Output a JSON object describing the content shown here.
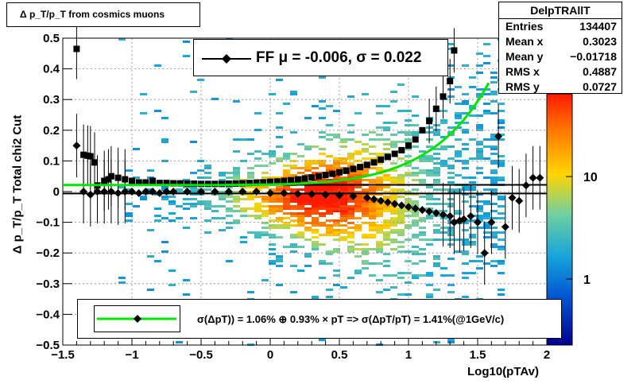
{
  "chart_data": {
    "type": "heatmap",
    "title": "Δ p_T/p_T from cosmics muons",
    "xlabel": "Log10(pTAv)",
    "ylabel": "Δ p_T/p_T  Total chi2 Cut",
    "xlim": [
      -1.5,
      2.0
    ],
    "ylim": [
      -0.5,
      0.5
    ],
    "grid": true,
    "x_ticks": [
      "−1.5",
      "−1",
      "−0.5",
      "0",
      "0.5",
      "1",
      "1.5",
      "2"
    ],
    "y_ticks": [
      "−0.5",
      "−0.4",
      "−0.3",
      "−0.2",
      "−0.1",
      "0",
      "0.1",
      "0.2",
      "0.3",
      "0.4",
      "0.5"
    ],
    "z_scale": "log",
    "z_ticks": [
      "1",
      "10"
    ],
    "colors": {
      "high": "#ff1a00",
      "mid": "#ffd500",
      "low": "#16a3dc",
      "min": "#000090",
      "fit_curve": "#00e600"
    },
    "rms_points": {
      "x": [
        -1.4,
        -1.35,
        -1.32,
        -1.3,
        -1.27,
        -1.25,
        -1.2,
        -1.17,
        -1.15,
        -1.1,
        -1.05,
        -1.0,
        -0.95,
        -0.9,
        -0.85,
        -0.8,
        -0.75,
        -0.7,
        -0.65,
        -0.6,
        -0.55,
        -0.5,
        -0.45,
        -0.4,
        -0.35,
        -0.3,
        -0.25,
        -0.2,
        -0.15,
        -0.1,
        -0.05,
        0.0,
        0.05,
        0.1,
        0.15,
        0.2,
        0.25,
        0.3,
        0.35,
        0.4,
        0.45,
        0.5,
        0.55,
        0.6,
        0.65,
        0.7,
        0.75,
        0.8,
        0.85,
        0.9,
        0.95,
        1.0,
        1.05,
        1.1,
        1.15,
        1.2,
        1.25,
        1.3,
        1.33
      ],
      "y": [
        0.465,
        0.12,
        0.117,
        0.115,
        0.095,
        0.02,
        0.035,
        0.04,
        0.05,
        0.045,
        0.04,
        0.035,
        0.03,
        0.03,
        0.035,
        0.028,
        0.028,
        0.027,
        0.027,
        0.026,
        0.026,
        0.025,
        0.025,
        0.025,
        0.025,
        0.026,
        0.026,
        0.027,
        0.028,
        0.029,
        0.03,
        0.032,
        0.033,
        0.035,
        0.037,
        0.04,
        0.043,
        0.046,
        0.05,
        0.054,
        0.058,
        0.063,
        0.068,
        0.074,
        0.08,
        0.087,
        0.095,
        0.104,
        0.113,
        0.123,
        0.135,
        0.15,
        0.17,
        0.2,
        0.23,
        0.27,
        0.31,
        0.36,
        0.46
      ]
    },
    "mean_points": {
      "x": [
        -1.4,
        -1.35,
        -1.3,
        -1.25,
        -1.2,
        -1.15,
        -1.1,
        -1.05,
        -1.0,
        -0.95,
        -0.9,
        -0.85,
        -0.8,
        -0.75,
        -0.7,
        -0.6,
        -0.5,
        -0.4,
        -0.3,
        -0.2,
        -0.1,
        0.0,
        0.1,
        0.2,
        0.3,
        0.4,
        0.5,
        0.6,
        0.7,
        0.75,
        0.8,
        0.85,
        0.9,
        0.95,
        1.0,
        1.05,
        1.1,
        1.15,
        1.2,
        1.25,
        1.3,
        1.33,
        1.37,
        1.4,
        1.45,
        1.5,
        1.55,
        1.6,
        1.65,
        1.7,
        1.75,
        1.8,
        1.85,
        1.9,
        1.95
      ],
      "y": [
        0.15,
        0.0,
        -0.01,
        0.0,
        0.0,
        0.0,
        -0.005,
        0.0,
        0.0,
        -0.005,
        0.0,
        0.0,
        -0.005,
        0.0,
        0.0,
        0.0,
        0.0,
        0.0,
        0.0,
        0.0,
        0.0,
        -0.005,
        -0.005,
        -0.007,
        -0.008,
        -0.01,
        -0.012,
        -0.015,
        -0.02,
        -0.025,
        -0.03,
        -0.035,
        -0.04,
        -0.045,
        -0.05,
        -0.055,
        -0.06,
        -0.065,
        -0.07,
        -0.075,
        -0.08,
        -0.1,
        -0.095,
        -0.09,
        -0.08,
        -0.1,
        -0.2,
        -0.1,
        0.18,
        -0.115,
        -0.02,
        -0.03,
        0.02,
        0.045,
        0.045
      ]
    },
    "fit_curve": {
      "name": "σ(ΔpT)) =  1.06% ⊕  0.93% × pT => σ(ΔpT/pT) =  1.41%(@1GeV/c)"
    },
    "fit_label": "FF μ = -0.006, σ =   0.022",
    "annotation": "σ(ΔpT)) =  1.06% ⊕  0.93% × pT => σ(ΔpT/pT) =  1.41%(@1GeV/c)",
    "stats": {
      "title": "DelpTRAllT",
      "rows": [
        {
          "label": "Entries",
          "value": "134407"
        },
        {
          "label": "Mean x",
          "value": "0.3023"
        },
        {
          "label": "Mean y",
          "value": "−0.01718"
        },
        {
          "label": "RMS x",
          "value": "0.4887"
        },
        {
          "label": "RMS y",
          "value": "0.0727"
        }
      ]
    }
  }
}
